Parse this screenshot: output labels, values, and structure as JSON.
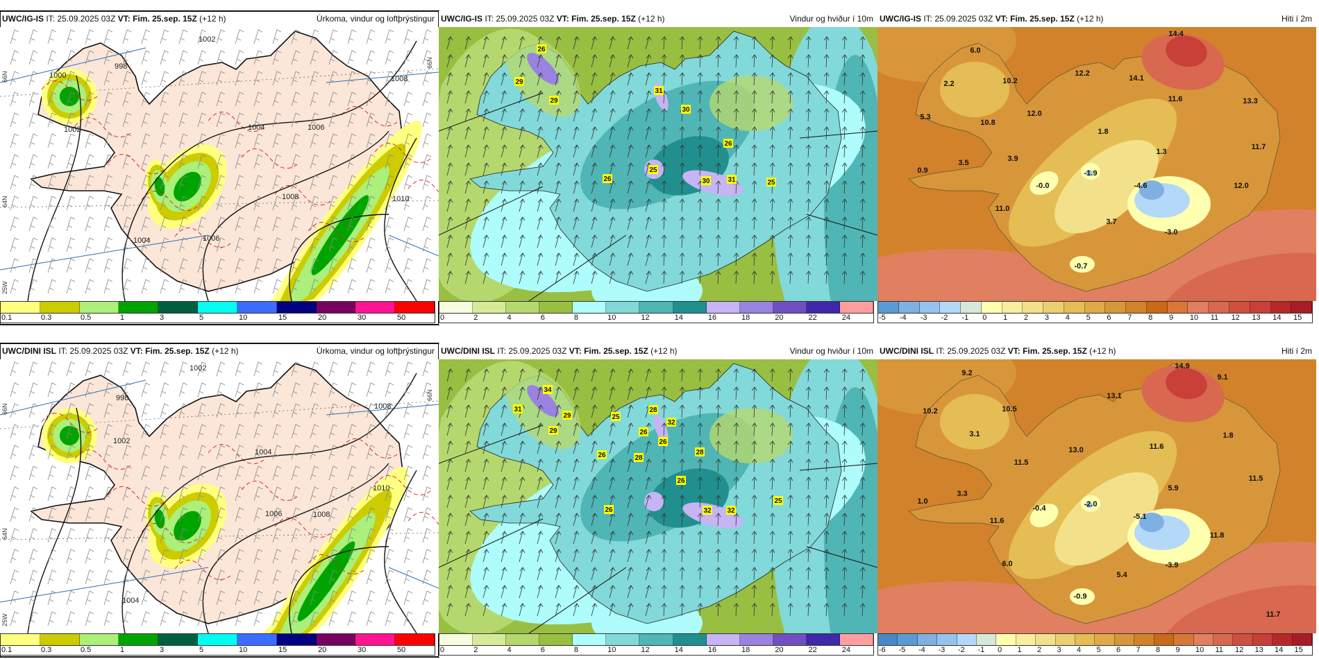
{
  "header": {
    "it": "IT: 25.09.2025 03Z",
    "vt": "VT: Fim. 25.sep. 15Z",
    "lead": "(+12 h)"
  },
  "rows": [
    {
      "model": "UWC/IG-IS"
    },
    {
      "model": "UWC/DINI ISL"
    }
  ],
  "titles": {
    "precip": "Úrkoma, vindur og loftþrýstingur",
    "wind": "Vindur og hviður í 10m",
    "temp": "Hiti í 2m"
  },
  "legends": {
    "precip": {
      "labels": [
        "0.1",
        "0.3",
        "0.5",
        "1",
        "3",
        "5",
        "10",
        "15",
        "20",
        "30",
        "50"
      ],
      "colors": [
        "#ffff80",
        "#cccc00",
        "#aaf07a",
        "#00a400",
        "#005f40",
        "#00fff0",
        "#3c6cff",
        "#000080",
        "#780060",
        "#ff1493",
        "#ff0000"
      ]
    },
    "wind": {
      "labels": [
        "0",
        "2",
        "4",
        "6",
        "8",
        "10",
        "12",
        "14",
        "16",
        "18",
        "20",
        "22",
        "24"
      ],
      "colors": [
        "#f8fde0",
        "#d6eb9a",
        "#b5d86e",
        "#98bf42",
        "#aefcfc",
        "#82d9d9",
        "#50b5b5",
        "#228f8f",
        "#c6b4f5",
        "#9a82e0",
        "#7050c0",
        "#4028a8",
        "#ff9e9e"
      ]
    },
    "temp_top": {
      "labels": [
        "-5",
        "-4",
        "-3",
        "-2",
        "-1",
        "0",
        "1",
        "2",
        "3",
        "4",
        "5",
        "6",
        "7",
        "8",
        "9",
        "10",
        "11",
        "12",
        "13",
        "14",
        "15"
      ],
      "colors": [
        "#5b9bd5",
        "#7fb0e2",
        "#94c4ee",
        "#b4d8f8",
        "#d8e8d8",
        "#ffffb0",
        "#f8eea0",
        "#f2e18a",
        "#ead070",
        "#e5bd55",
        "#e0aa48",
        "#d8963a",
        "#d2822a",
        "#c86a18",
        "#d87838",
        "#e08060",
        "#d86850",
        "#d05040",
        "#c84038",
        "#b82828",
        "#a81c28"
      ]
    },
    "temp_bottom": {
      "labels": [
        "-6",
        "-5",
        "-4",
        "-3",
        "-2",
        "-1",
        "0",
        "1",
        "2",
        "3",
        "4",
        "5",
        "6",
        "7",
        "8",
        "9",
        "10",
        "11",
        "12",
        "13",
        "14",
        "15"
      ],
      "colors": [
        "#4a88c8",
        "#5b9bd5",
        "#7fb0e2",
        "#94c4ee",
        "#b4d8f8",
        "#d8e8d8",
        "#ffffb0",
        "#f8eea0",
        "#f2e18a",
        "#ead070",
        "#e5bd55",
        "#e0aa48",
        "#d8963a",
        "#d2822a",
        "#c86a18",
        "#d87838",
        "#e08060",
        "#d86850",
        "#d05040",
        "#c84038",
        "#b82828",
        "#a81c28"
      ]
    }
  },
  "maps": {
    "lat_labels": [
      "66N",
      "64N",
      "25W"
    ],
    "isobars_top": [
      "998",
      "1000",
      "1002",
      "1002",
      "1004",
      "1006",
      "1008",
      "1008",
      "1006",
      "1010",
      "1004"
    ],
    "isobars_bottom": [
      "998",
      "1002",
      "1002",
      "1004",
      "1008",
      "1010",
      "1006",
      "1008",
      "1004"
    ],
    "gusts_top": [
      "26",
      "29",
      "29",
      "31",
      "30",
      "26",
      "25",
      "26",
      "30",
      "31",
      "25"
    ],
    "gusts_bottom": [
      "34",
      "31",
      "29",
      "29",
      "25",
      "28",
      "32",
      "26",
      "26",
      "28",
      "26",
      "28",
      "26",
      "25",
      "26",
      "32",
      "32"
    ],
    "temps_top": [
      "14.4",
      "6.0",
      "2.2",
      "10.2",
      "12.2",
      "14.1",
      "11.6",
      "13.3",
      "5.3",
      "12.0",
      "10.8",
      "1.8",
      "1.3",
      "11.7",
      "3.5",
      "3.9",
      "0.9",
      "-1.9",
      "-0.0",
      "-4.6",
      "12.0",
      "11.0",
      "3.7",
      "-3.0",
      "-0.7"
    ],
    "temps_bottom": [
      "14.9",
      "9.2",
      "9.1",
      "13.1",
      "10.2",
      "10.5",
      "3.1",
      "1.8",
      "11.6",
      "13.0",
      "11.5",
      "11.5",
      "5.9",
      "3.3",
      "1.0",
      "-2.0",
      "-0.4",
      "-5.1",
      "11.6",
      "11.8",
      "6.0",
      "-3.9",
      "5.4",
      "-0.9",
      "11.7"
    ]
  }
}
